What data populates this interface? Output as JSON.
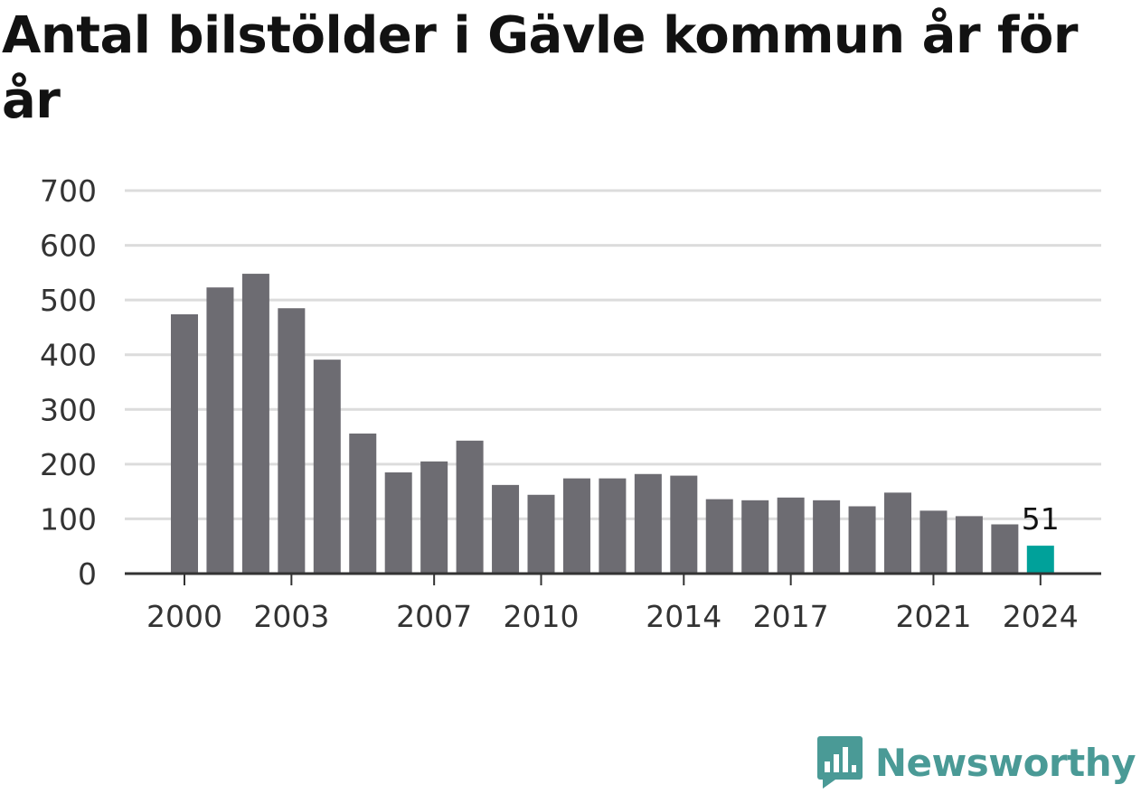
{
  "title": "Antal bilstölder i Gävle kommun år för år",
  "brand": {
    "name": "Newsworthy",
    "icon": "bar-chart-speech-bubble-icon",
    "color": "#4a9a96"
  },
  "chart_data": {
    "type": "bar",
    "title": "Antal bilstölder i Gävle kommun år för år",
    "xlabel": "",
    "ylabel": "",
    "categories": [
      "2000",
      "2001",
      "2002",
      "2003",
      "2004",
      "2005",
      "2006",
      "2007",
      "2008",
      "2009",
      "2010",
      "2011",
      "2012",
      "2013",
      "2014",
      "2015",
      "2016",
      "2017",
      "2018",
      "2019",
      "2020",
      "2021",
      "2022",
      "2023",
      "2024"
    ],
    "values": [
      474,
      523,
      548,
      485,
      391,
      256,
      185,
      205,
      243,
      162,
      144,
      174,
      174,
      182,
      179,
      136,
      134,
      139,
      134,
      123,
      148,
      115,
      105,
      90,
      51
    ],
    "x_tick_labels": [
      "2000",
      "2003",
      "2007",
      "2010",
      "2014",
      "2017",
      "2021",
      "2024"
    ],
    "y_ticks": [
      0,
      100,
      200,
      300,
      400,
      500,
      600,
      700
    ],
    "ylim": [
      0,
      700
    ],
    "grid": "horizontal",
    "highlight": {
      "category": "2024",
      "label": "51"
    },
    "colors": {
      "bar": "#6d6c72",
      "highlight": "#00a19a",
      "grid": "#dcdcdc",
      "axis": "#333333"
    }
  }
}
